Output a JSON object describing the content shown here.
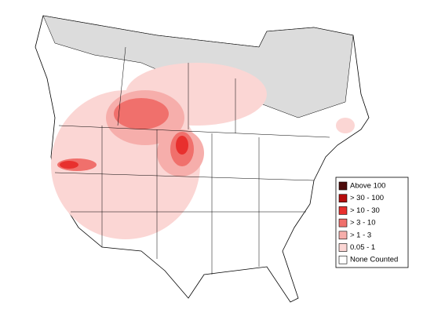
{
  "legend": {
    "items": [
      {
        "label": "Above 100",
        "color": "#4d0b0b"
      },
      {
        "label": "> 30 - 100",
        "color": "#b50d0d"
      },
      {
        "label": "> 10 - 30",
        "color": "#e8302e"
      },
      {
        "label": "> 3 - 10",
        "color": "#f0706c"
      },
      {
        "label": "> 1 - 3",
        "color": "#f6aeab"
      },
      {
        "label": "0.05 - 1",
        "color": "#fbd6d4"
      },
      {
        "label": "None Counted",
        "color": "#ffffff"
      }
    ]
  }
}
